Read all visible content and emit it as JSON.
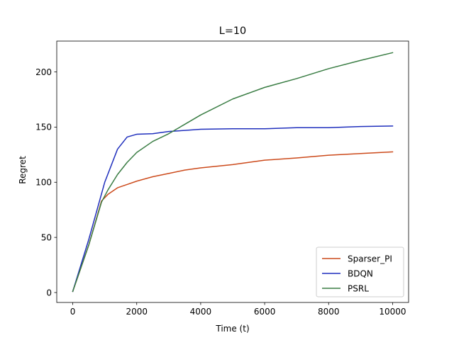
{
  "chart_data": {
    "type": "line",
    "title": "L=10",
    "xlabel": "Time (t)",
    "ylabel": "Regret",
    "xlim": [
      -500,
      10500
    ],
    "ylim": [
      -9,
      228
    ],
    "xticks": [
      0,
      2000,
      4000,
      6000,
      8000,
      10000
    ],
    "xtick_labels": [
      "0",
      "2000",
      "4000",
      "6000",
      "8000",
      "10000"
    ],
    "yticks": [
      0,
      50,
      100,
      150,
      200
    ],
    "ytick_labels": [
      "0",
      "50",
      "100",
      "150",
      "200"
    ],
    "grid": false,
    "legend_position": "lower-right",
    "series": [
      {
        "name": "Sparser_PI",
        "color": "#cc4a1b",
        "x": [
          0,
          500,
          900,
          1100,
          1400,
          1700,
          2000,
          2500,
          3000,
          3500,
          4000,
          5000,
          6000,
          7000,
          8000,
          9000,
          10000
        ],
        "y": [
          1,
          43,
          83,
          89,
          95,
          98,
          101,
          105,
          108,
          111,
          113,
          116,
          120,
          122,
          124.5,
          126,
          127.5
        ]
      },
      {
        "name": "BDQN",
        "color": "#1f2fbd",
        "x": [
          0,
          500,
          1000,
          1400,
          1700,
          2000,
          2500,
          3000,
          3500,
          4000,
          5000,
          6000,
          7000,
          8000,
          9000,
          10000
        ],
        "y": [
          1,
          48,
          100,
          130,
          141,
          143.5,
          144,
          146,
          147,
          148,
          148.5,
          148.5,
          149.5,
          149.5,
          150.5,
          151
        ]
      },
      {
        "name": "PSRL",
        "color": "#3a7d44",
        "x": [
          0,
          500,
          900,
          1100,
          1400,
          1700,
          2000,
          2500,
          3000,
          3500,
          4000,
          5000,
          6000,
          7000,
          8000,
          9000,
          10000
        ],
        "y": [
          1,
          43,
          82,
          93,
          107,
          118,
          127,
          137,
          144,
          152.5,
          161,
          175.5,
          186,
          194,
          203,
          210.5,
          217.5
        ]
      }
    ]
  }
}
